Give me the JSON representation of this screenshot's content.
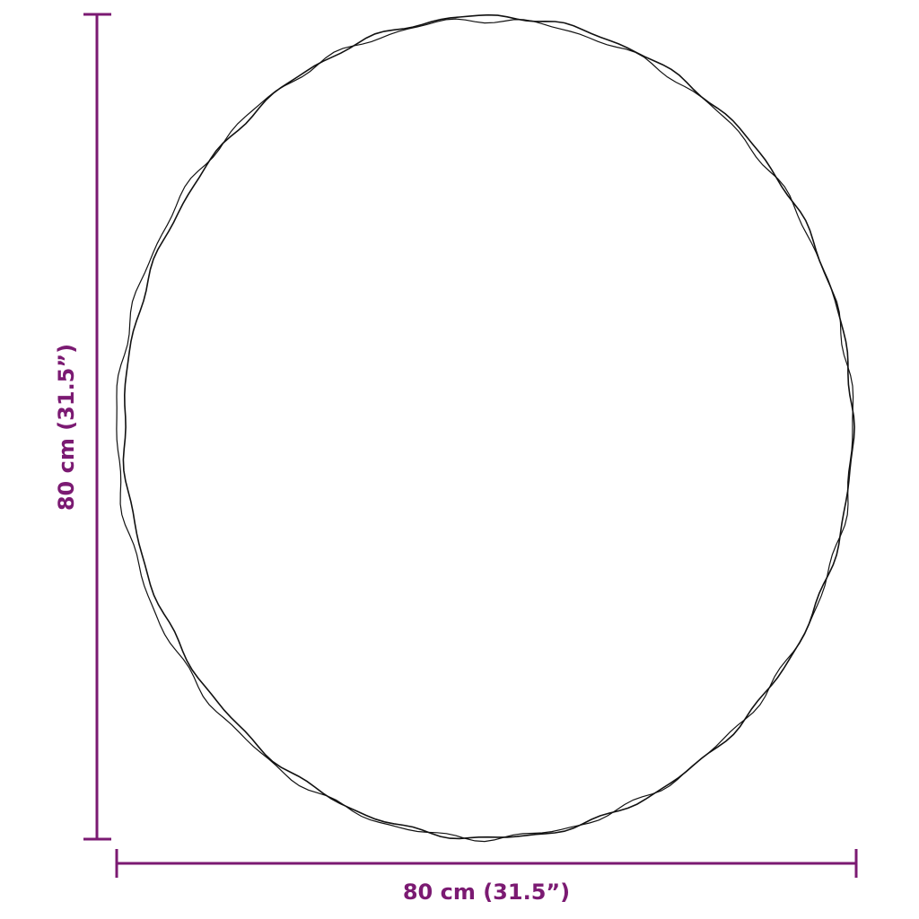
{
  "dimensions": {
    "width_label": "80 cm (31.5”)",
    "height_label": "80 cm (31.5”)"
  },
  "colors": {
    "dimension": "#7b1a72",
    "outline": "#111111"
  }
}
